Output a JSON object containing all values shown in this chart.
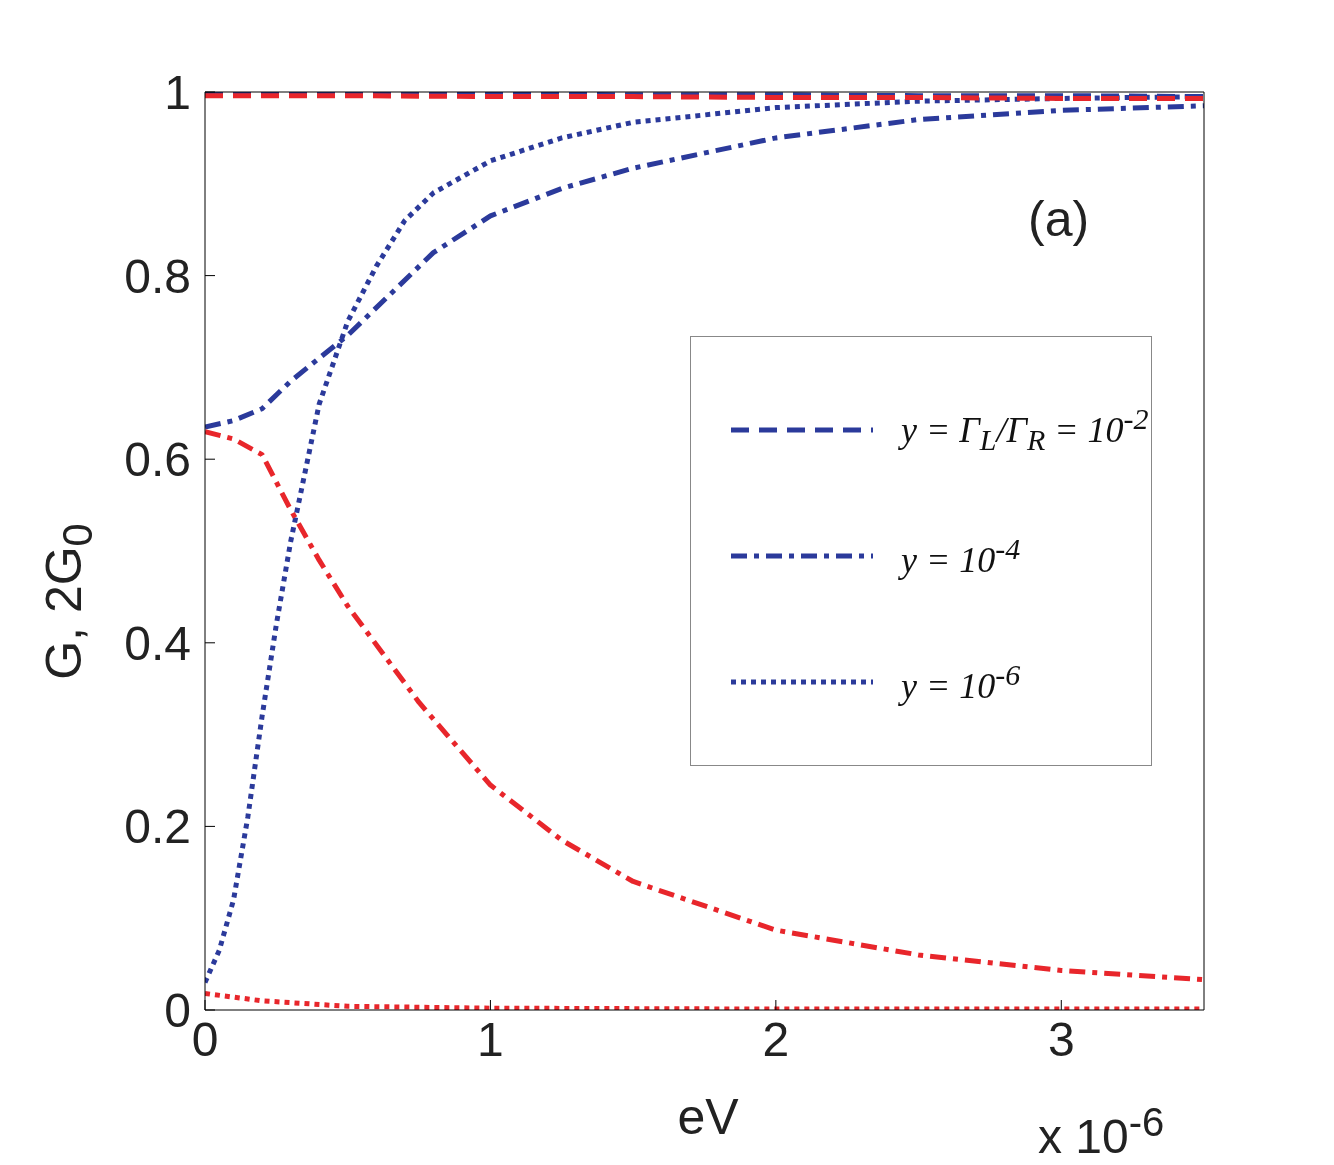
{
  "chart_data": {
    "type": "line",
    "annotations": [
      "(a)",
      "x 10$^{-6}$"
    ],
    "xlabel": "eV",
    "ylabel": "G, 2G$_{0}$",
    "xlim": [
      0,
      3.5
    ],
    "xticks": [
      0,
      1,
      2,
      3
    ],
    "ylim": [
      0,
      1
    ],
    "yticks": [
      0,
      0.2,
      0.4,
      0.6,
      0.8,
      1
    ],
    "grid": false,
    "legend": "right",
    "marker": "none",
    "series": [
      {
        "name": "y = Γ$_{L}$/Γ$_{R}$ = 10$^{-2}$",
        "color": "#2b3a9b",
        "line_style": "dashed",
        "x": [
          0,
          0.5,
          1,
          1.5,
          2,
          2.5,
          3,
          3.5
        ],
        "values": [
          0.998,
          0.998,
          0.998,
          0.997,
          0.997,
          0.996,
          0.996,
          0.995
        ]
      },
      {
        "name": "y = 10$^{-4}$",
        "color": "#2b3a9b",
        "line_style": "dashdot",
        "x": [
          0,
          0.1,
          0.2,
          0.3,
          0.4,
          0.5,
          0.65,
          0.8,
          1,
          1.25,
          1.5,
          2,
          2.5,
          3,
          3.5
        ],
        "values": [
          0.635,
          0.642,
          0.655,
          0.685,
          0.71,
          0.735,
          0.78,
          0.825,
          0.865,
          0.895,
          0.917,
          0.95,
          0.97,
          0.98,
          0.985
        ]
      },
      {
        "name": "y = 10$^{-6}$",
        "color": "#2b3a9b",
        "line_style": "dotted",
        "x": [
          0,
          0.05,
          0.1,
          0.15,
          0.2,
          0.25,
          0.3,
          0.4,
          0.5,
          0.6,
          0.7,
          0.8,
          1,
          1.25,
          1.5,
          2,
          2.5,
          3,
          3.5
        ],
        "values": [
          0.03,
          0.065,
          0.12,
          0.21,
          0.32,
          0.42,
          0.51,
          0.66,
          0.75,
          0.81,
          0.86,
          0.89,
          0.925,
          0.95,
          0.967,
          0.983,
          0.99,
          0.993,
          0.995
        ]
      },
      {
        "color": "#e8262b",
        "line_style": "dashed",
        "x": [
          0,
          0.5,
          1,
          1.5,
          2,
          2.5,
          3,
          3.5
        ],
        "values": [
          0.996,
          0.996,
          0.995,
          0.995,
          0.994,
          0.994,
          0.993,
          0.993
        ]
      },
      {
        "color": "#e8262b",
        "line_style": "dashdot",
        "x": [
          0,
          0.1,
          0.2,
          0.3,
          0.4,
          0.5,
          0.75,
          1,
          1.25,
          1.5,
          2,
          2.5,
          3,
          3.5
        ],
        "values": [
          0.63,
          0.622,
          0.605,
          0.545,
          0.49,
          0.44,
          0.335,
          0.245,
          0.185,
          0.14,
          0.087,
          0.06,
          0.043,
          0.033
        ]
      },
      {
        "color": "#e8262b",
        "line_style": "dotted",
        "x": [
          0,
          0.2,
          0.5,
          1,
          2,
          3.5
        ],
        "values": [
          0.018,
          0.01,
          0.004,
          0.002,
          0.001,
          0.001
        ]
      }
    ]
  }
}
